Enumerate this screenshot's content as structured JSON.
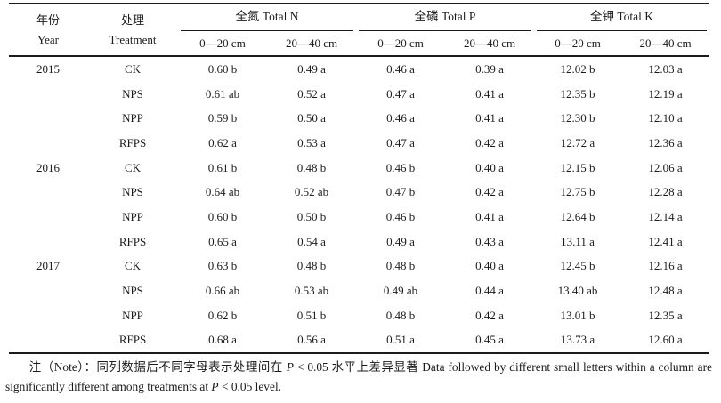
{
  "table": {
    "col_headers": {
      "year_zh": "年份",
      "year_en": "Year",
      "treatment_zh": "处理",
      "treatment_en": "Treatment",
      "groups": [
        {
          "label": "全氮 Total N",
          "sub": [
            "0—20 cm",
            "20—40 cm"
          ]
        },
        {
          "label": "全磷 Total P",
          "sub": [
            "0—20 cm",
            "20—40 cm"
          ]
        },
        {
          "label": "全钾 Total K",
          "sub": [
            "0—20 cm",
            "20—40 cm"
          ]
        }
      ]
    },
    "rows": [
      {
        "year": "2015",
        "treatment": "CK",
        "values": [
          "0.60 b",
          "0.49 a",
          "0.46 a",
          "0.39 a",
          "12.02 b",
          "12.03 a"
        ]
      },
      {
        "year": "",
        "treatment": "NPS",
        "values": [
          "0.61 ab",
          "0.52 a",
          "0.47 a",
          "0.41 a",
          "12.35 b",
          "12.19 a"
        ]
      },
      {
        "year": "",
        "treatment": "NPP",
        "values": [
          "0.59 b",
          "0.50 a",
          "0.46 a",
          "0.41 a",
          "12.30 b",
          "12.10 a"
        ]
      },
      {
        "year": "",
        "treatment": "RFPS",
        "values": [
          "0.62 a",
          "0.53 a",
          "0.47 a",
          "0.42 a",
          "12.72 a",
          "12.36 a"
        ]
      },
      {
        "year": "2016",
        "treatment": "CK",
        "values": [
          "0.61 b",
          "0.48 b",
          "0.46 b",
          "0.40 a",
          "12.15 b",
          "12.06 a"
        ]
      },
      {
        "year": "",
        "treatment": "NPS",
        "values": [
          "0.64 ab",
          "0.52 ab",
          "0.47 b",
          "0.42 a",
          "12.75 b",
          "12.28 a"
        ]
      },
      {
        "year": "",
        "treatment": "NPP",
        "values": [
          "0.60 b",
          "0.50 b",
          "0.46 b",
          "0.41 a",
          "12.64 b",
          "12.14 a"
        ]
      },
      {
        "year": "",
        "treatment": "RFPS",
        "values": [
          "0.65 a",
          "0.54 a",
          "0.49 a",
          "0.43 a",
          "13.11 a",
          "12.41 a"
        ]
      },
      {
        "year": "2017",
        "treatment": "CK",
        "values": [
          "0.63 b",
          "0.48 b",
          "0.48 b",
          "0.40 a",
          "12.45 b",
          "12.16 a"
        ]
      },
      {
        "year": "",
        "treatment": "NPS",
        "values": [
          "0.66 ab",
          "0.53 ab",
          "0.49 ab",
          "0.44 a",
          "13.40 ab",
          "12.48 a"
        ]
      },
      {
        "year": "",
        "treatment": "NPP",
        "values": [
          "0.62 b",
          "0.51 b",
          "0.48 b",
          "0.42 a",
          "13.01 b",
          "12.35 a"
        ]
      },
      {
        "year": "",
        "treatment": "RFPS",
        "values": [
          "0.68 a",
          "0.56 a",
          "0.51 a",
          "0.45 a",
          "13.73 a",
          "12.60 a"
        ]
      }
    ]
  },
  "note": {
    "zh": "注（Note）：同列数据后不同字母表示处理间在 ",
    "p1": "P",
    "mid": " < 0.05 水平上差异显著 Data followed by different small letters within a column are significantly different among treatments at ",
    "p2": "P",
    "tail": " < 0.05 level."
  }
}
